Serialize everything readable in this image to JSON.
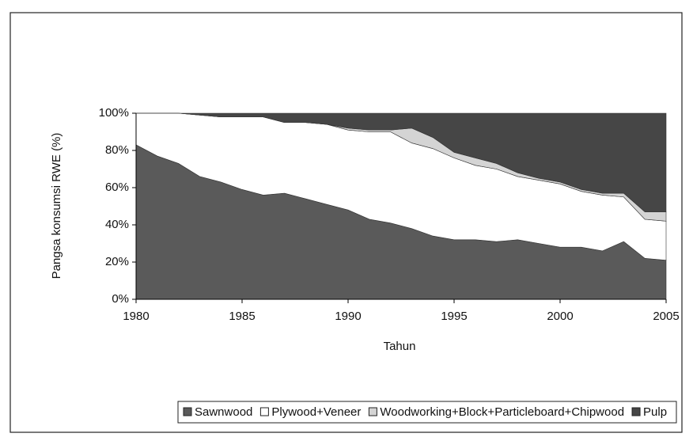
{
  "chart_data": {
    "type": "stacked_area",
    "x": [
      1980,
      1981,
      1982,
      1983,
      1984,
      1985,
      1986,
      1987,
      1988,
      1989,
      1990,
      1991,
      1992,
      1993,
      1994,
      1995,
      1996,
      1997,
      1998,
      1999,
      2000,
      2001,
      2002,
      2003,
      2004,
      2005
    ],
    "series": [
      {
        "name": "Sawnwood",
        "color": "#5a5a5a",
        "values": [
          83,
          77,
          73,
          66,
          63,
          59,
          56,
          57,
          54,
          51,
          48,
          43,
          41,
          38,
          34,
          32,
          32,
          31,
          32,
          30,
          28,
          28,
          26,
          31,
          22,
          21
        ]
      },
      {
        "name": "Plywood+Veneer",
        "color": "#ffffff",
        "values": [
          17,
          23,
          27,
          33,
          35,
          39,
          42,
          38,
          41,
          43,
          43,
          47,
          49,
          46,
          47,
          44,
          40,
          39,
          34,
          34,
          34,
          30,
          30,
          24,
          21,
          21
        ]
      },
      {
        "name": "Woodworking+Block+Particleboard+Chipwood",
        "color": "#d4d4d4",
        "values": [
          0,
          0,
          0,
          0,
          0,
          0,
          0,
          0,
          0,
          0,
          1,
          1,
          1,
          8,
          6,
          3,
          4,
          3,
          2,
          1,
          1,
          1,
          1,
          2,
          4,
          5
        ]
      },
      {
        "name": "Pulp",
        "color": "#464646",
        "values": [
          0,
          0,
          0,
          1,
          2,
          2,
          2,
          5,
          5,
          6,
          8,
          9,
          9,
          8,
          13,
          21,
          24,
          27,
          32,
          35,
          37,
          41,
          43,
          43,
          53,
          53
        ]
      }
    ],
    "xlabel": "Tahun",
    "ylabel": "Pangsa konsumsi RWE (%)",
    "xlim": [
      1980,
      2005
    ],
    "xticks": [
      1980,
      1985,
      1990,
      1995,
      2000,
      2005
    ],
    "ylim": [
      0,
      100
    ],
    "yticks": [
      {
        "value": 0,
        "label": "0%"
      },
      {
        "value": 20,
        "label": "20%"
      },
      {
        "value": 40,
        "label": "40%"
      },
      {
        "value": 60,
        "label": "60%"
      },
      {
        "value": 80,
        "label": "80%"
      },
      {
        "value": 100,
        "label": "100%"
      }
    ],
    "legend": "bottom"
  }
}
